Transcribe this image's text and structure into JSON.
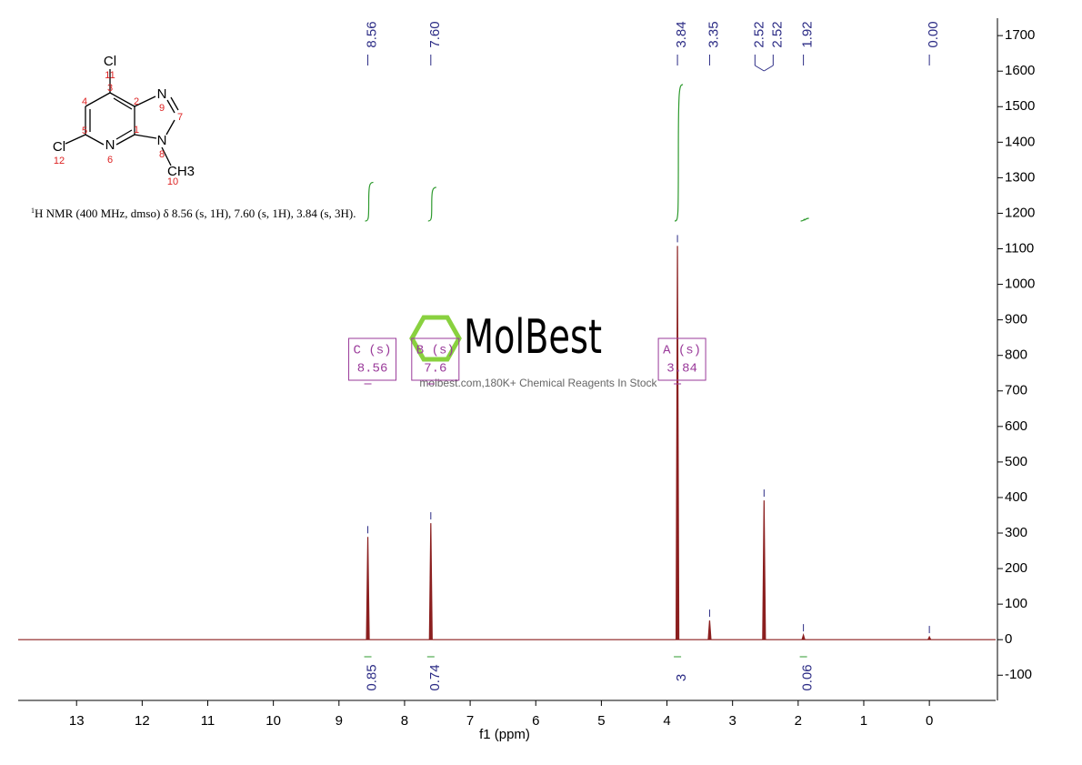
{
  "chart_data": {
    "type": "nmr",
    "x_label": "f1 (ppm)",
    "xlim": [
      13.89,
      -1.01
    ],
    "xticks": [
      13,
      12,
      11,
      10,
      9,
      8,
      7,
      6,
      5,
      4,
      3,
      2,
      1,
      0
    ],
    "ylim": [
      -171,
      1749
    ],
    "yticks": [
      -100,
      0,
      100,
      200,
      300,
      400,
      500,
      600,
      700,
      800,
      900,
      1000,
      1100,
      1200,
      1300,
      1400,
      1500,
      1600,
      1700
    ],
    "color": "#8b1f1f",
    "x": [
      8.56,
      7.6,
      3.84,
      3.35,
      2.52,
      1.92,
      0.0
    ],
    "values": [
      289,
      328,
      1108,
      54,
      392,
      13,
      8
    ],
    "peak_labels": [
      {
        "value": 8.56,
        "label": "8.56"
      },
      {
        "value": 7.6,
        "label": "7.60"
      },
      {
        "value": 3.84,
        "label": "3.84"
      },
      {
        "value": 3.35,
        "label": "3.35"
      },
      {
        "value": 2.52,
        "label": "2.52"
      },
      {
        "value": 2.52,
        "label": "2.52"
      },
      {
        "value": 1.92,
        "label": "1.92"
      },
      {
        "value": 0.0,
        "label": "0.00"
      }
    ],
    "integrals": [
      {
        "x": 8.56,
        "value": 0.85
      },
      {
        "x": 7.6,
        "value": 0.74
      },
      {
        "x": 3.84,
        "value": 3.0
      },
      {
        "x": 1.92,
        "value": 0.06
      }
    ],
    "multiplets": [
      {
        "name": "C (s)",
        "shift": 8.56
      },
      {
        "name": "B (s)",
        "shift": 7.6
      },
      {
        "name": "A (s)",
        "shift": 3.84
      }
    ],
    "note_sup": "1",
    "note": "H NMR (400 MHz, dmso) δ 8.56 (s, 1H), 7.60 (s, 1H), 3.84 (s, 3H).",
    "structure": {
      "atoms": [
        "Cl",
        "N",
        "N",
        "N",
        "Cl",
        "CH3"
      ],
      "numbers": [
        "11",
        "3",
        "4",
        "2",
        "9",
        "7",
        "1",
        "5",
        "6",
        "8",
        "12",
        "10"
      ]
    },
    "watermark": "MolBest",
    "watermark_sub": "molbest.com,180K+ Chemical Reagents In Stock"
  }
}
